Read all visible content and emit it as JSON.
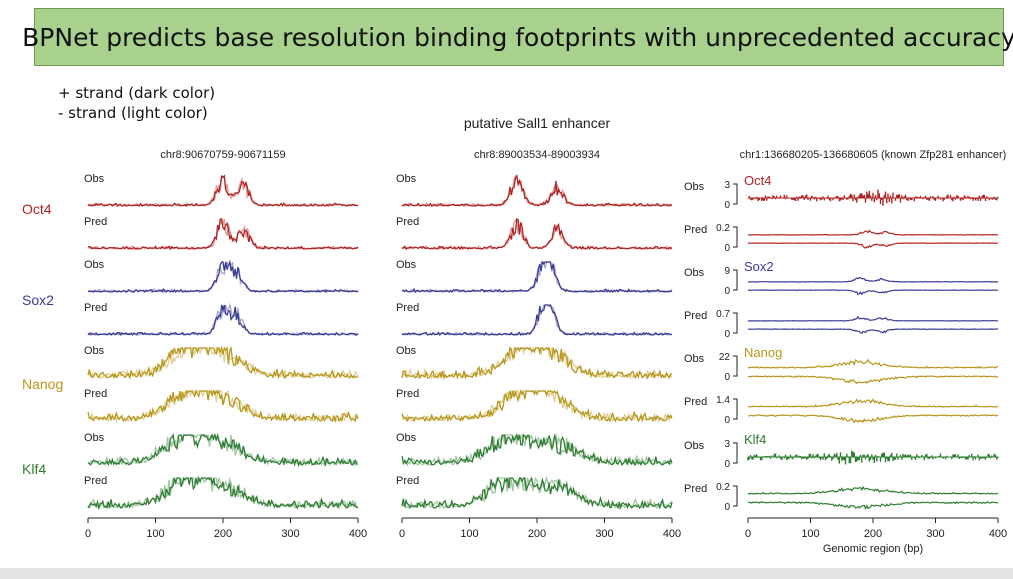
{
  "title": "BPNet predicts base resolution binding footprints with unprecedented accuracy",
  "legend": {
    "plus": "+ strand (dark color)",
    "minus": "- strand (light color)"
  },
  "colors": {
    "Oct4": "#b22222",
    "Sox2": "#3a3a96",
    "Nanog": "#b8961a",
    "Klf4": "#2e7d32",
    "banner": "#a9d18e"
  },
  "chart_data": [
    {
      "type": "line",
      "title": "chr8:90670759-90671159",
      "panels": [
        "Obs",
        "Pred"
      ],
      "factors": [
        "Oct4",
        "Sox2",
        "Nanog",
        "Klf4"
      ],
      "x_ticks": [
        0,
        100,
        200,
        300,
        400
      ],
      "xlim": [
        0,
        400
      ],
      "peaks": {
        "Oct4": [
          200,
          230
        ],
        "Sox2": [
          200,
          220
        ],
        "Nanog": [
          150,
          200
        ],
        "Klf4": [
          145,
          200
        ]
      }
    },
    {
      "type": "line",
      "title": "chr8:89003534-89003934",
      "supertitle": "putative Sall1 enhancer",
      "panels": [
        "Obs",
        "Pred"
      ],
      "factors": [
        "Oct4",
        "Sox2",
        "Nanog",
        "Klf4"
      ],
      "x_ticks": [
        0,
        100,
        200,
        300,
        400
      ],
      "xlim": [
        0,
        400
      ],
      "peaks": {
        "Oct4": [
          170,
          230
        ],
        "Sox2": [
          210,
          220
        ],
        "Nanog": [
          180,
          220
        ],
        "Klf4": [
          160,
          230
        ]
      }
    },
    {
      "type": "line",
      "title": "chr1:136680205-136680605 (known Zfp281 enhancer)",
      "panels": [
        "Obs",
        "Pred"
      ],
      "factors": [
        "Oct4",
        "Sox2",
        "Nanog",
        "Klf4"
      ],
      "x_ticks": [
        0,
        100,
        200,
        300,
        400
      ],
      "xlim": [
        0,
        400
      ],
      "xlabel": "Genomic region (bp)",
      "y_ticks": {
        "Oct4": {
          "Obs": [
            "3",
            "0"
          ],
          "Pred": [
            "0.2",
            "0"
          ]
        },
        "Sox2": {
          "Obs": [
            "9",
            "0"
          ],
          "Pred": [
            "0.7",
            "0"
          ]
        },
        "Nanog": {
          "Obs": [
            "22",
            "0"
          ],
          "Pred": [
            "1.4",
            "0"
          ]
        },
        "Klf4": {
          "Obs": [
            "3",
            "0"
          ],
          "Pred": [
            "0.2",
            "0"
          ]
        }
      },
      "peaks": {
        "Oct4": [
          190,
          220
        ],
        "Sox2": [
          180,
          215
        ],
        "Nanog": [
          170,
          200
        ],
        "Klf4": [
          160,
          210
        ]
      }
    }
  ]
}
